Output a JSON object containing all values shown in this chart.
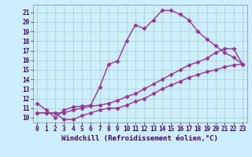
{
  "xlabel": "Windchill (Refroidissement éolien,°C)",
  "background_color": "#cceeff",
  "grid_color": "#aaccbb",
  "line_color": "#993399",
  "line1_x": [
    0,
    1,
    2,
    3,
    4,
    5,
    6,
    7,
    8,
    9,
    10,
    11,
    12,
    13,
    14,
    15,
    16,
    17,
    18,
    19,
    20,
    21,
    22,
    23
  ],
  "line1_y": [
    11.5,
    10.8,
    10.0,
    10.8,
    11.1,
    11.2,
    11.3,
    13.2,
    15.6,
    15.9,
    18.0,
    19.7,
    19.3,
    20.2,
    21.2,
    21.2,
    20.8,
    20.2,
    19.0,
    18.2,
    17.5,
    16.8,
    16.3,
    15.6
  ],
  "line2_x": [
    0,
    1,
    2,
    3,
    4,
    5,
    6,
    7,
    8,
    9,
    10,
    11,
    12,
    13,
    14,
    15,
    16,
    17,
    18,
    19,
    20,
    21,
    22,
    23
  ],
  "line2_y": [
    10.5,
    10.5,
    10.5,
    10.5,
    10.8,
    11.0,
    11.2,
    11.3,
    11.5,
    11.8,
    12.2,
    12.5,
    13.0,
    13.5,
    14.0,
    14.5,
    15.0,
    15.5,
    15.8,
    16.2,
    16.8,
    17.2,
    17.2,
    15.6
  ],
  "line3_x": [
    0,
    1,
    2,
    3,
    4,
    5,
    6,
    7,
    8,
    9,
    10,
    11,
    12,
    13,
    14,
    15,
    16,
    17,
    18,
    19,
    20,
    21,
    22,
    23
  ],
  "line3_y": [
    10.5,
    10.5,
    10.5,
    9.8,
    9.8,
    10.2,
    10.5,
    10.8,
    11.0,
    11.0,
    11.3,
    11.7,
    12.0,
    12.5,
    13.0,
    13.4,
    13.8,
    14.2,
    14.5,
    14.8,
    15.0,
    15.3,
    15.5,
    15.6
  ],
  "xlim": [
    -0.5,
    23.5
  ],
  "ylim": [
    9.5,
    21.8
  ],
  "yticks": [
    10,
    11,
    12,
    13,
    14,
    15,
    16,
    17,
    18,
    19,
    20,
    21
  ],
  "xticks": [
    0,
    1,
    2,
    3,
    4,
    5,
    6,
    7,
    8,
    9,
    10,
    11,
    12,
    13,
    14,
    15,
    16,
    17,
    18,
    19,
    20,
    21,
    22,
    23
  ],
  "marker": "D",
  "markersize": 2.5,
  "linewidth": 1.0,
  "tick_fontsize": 5.5,
  "xlabel_fontsize": 6.5
}
